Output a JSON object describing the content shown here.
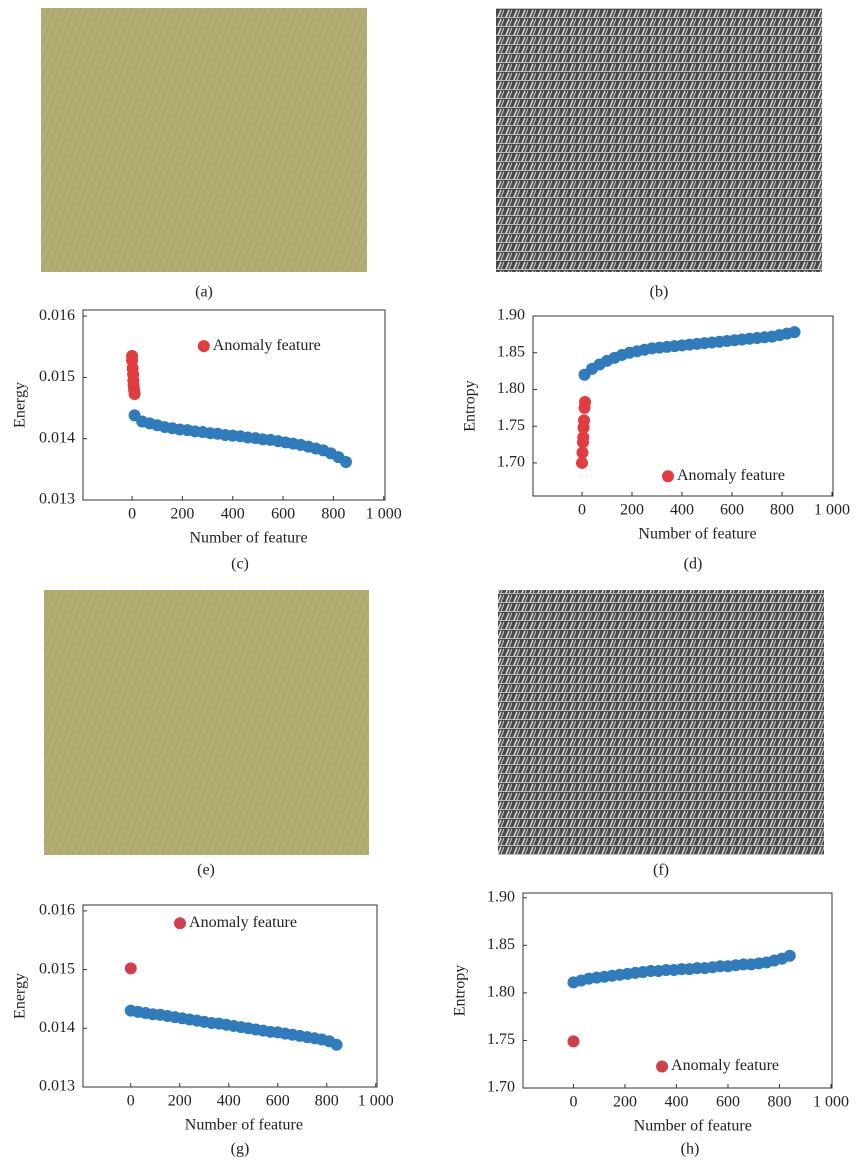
{
  "images": [
    {
      "caption": "(a)"
    },
    {
      "caption": "(b)"
    },
    {
      "caption": "(e)"
    },
    {
      "caption": "(f)"
    }
  ],
  "chart_data": [
    {
      "type": "scatter",
      "caption": "(c)",
      "xlabel": "Number of feature",
      "ylabel": "Energy",
      "xlim": [
        -195,
        1005
      ],
      "ylim": [
        0.013,
        0.0161
      ],
      "xticks": [
        0,
        200,
        400,
        600,
        800,
        {
          "value": 1000,
          "label": "1 000"
        }
      ],
      "yticks": [
        0.013,
        0.014,
        0.015,
        0.016
      ],
      "legend": "upper right",
      "series": [
        {
          "color": "#2f7bbb",
          "x": [
            10,
            40,
            70,
            100,
            130,
            160,
            190,
            220,
            250,
            280,
            310,
            340,
            370,
            400,
            430,
            460,
            490,
            520,
            550,
            580,
            610,
            640,
            670,
            700,
            730,
            760,
            790,
            820,
            850
          ],
          "values": [
            0.01438,
            0.01428,
            0.01425,
            0.01422,
            0.01419,
            0.01417,
            0.01415,
            0.01414,
            0.01412,
            0.01411,
            0.01409,
            0.01408,
            0.01406,
            0.01405,
            0.01404,
            0.01402,
            0.01401,
            0.01399,
            0.01398,
            0.01396,
            0.01394,
            0.01392,
            0.0139,
            0.01387,
            0.01384,
            0.01381,
            0.01376,
            0.0137,
            0.01362
          ]
        },
        {
          "name": "Anomaly feature",
          "color": "#e23b40",
          "x": [
            0,
            0,
            2,
            4,
            5,
            6,
            8,
            10
          ],
          "values": [
            0.01535,
            0.01528,
            0.01515,
            0.01505,
            0.01495,
            0.01487,
            0.0148,
            0.01473
          ]
        }
      ]
    },
    {
      "type": "scatter",
      "caption": "(d)",
      "xlabel": "Number of feature",
      "ylabel": "Entropy",
      "xlim": [
        -196,
        1004
      ],
      "ylim": [
        1.655,
        1.9
      ],
      "xticks": [
        0,
        200,
        400,
        600,
        800,
        {
          "value": 1000,
          "label": "1 000"
        }
      ],
      "yticks": [
        {
          "value": 1.7,
          "label": "1.70"
        },
        1.75,
        {
          "value": 1.8,
          "label": "1.80"
        },
        1.85,
        {
          "value": 1.9,
          "label": "1.90"
        }
      ],
      "legend": "lower right",
      "series": [
        {
          "color": "#2f7bbb",
          "x": [
            10,
            40,
            70,
            100,
            130,
            160,
            190,
            220,
            250,
            280,
            310,
            340,
            370,
            400,
            430,
            460,
            490,
            520,
            550,
            580,
            610,
            640,
            670,
            700,
            730,
            760,
            790,
            820,
            850
          ],
          "values": [
            1.82,
            1.828,
            1.834,
            1.839,
            1.843,
            1.847,
            1.85,
            1.852,
            1.854,
            1.856,
            1.857,
            1.858,
            1.859,
            1.86,
            1.861,
            1.862,
            1.863,
            1.864,
            1.865,
            1.866,
            1.867,
            1.868,
            1.869,
            1.87,
            1.871,
            1.872,
            1.874,
            1.876,
            1.878
          ]
        },
        {
          "name": "Anomaly feature",
          "color": "#e23b40",
          "x": [
            0,
            2,
            4,
            5,
            6,
            8,
            10,
            12
          ],
          "values": [
            1.7,
            1.714,
            1.728,
            1.735,
            1.748,
            1.758,
            1.775,
            1.783
          ]
        }
      ]
    },
    {
      "type": "scatter",
      "caption": "(g)",
      "xlabel": "Number of feature",
      "ylabel": "Energy",
      "xlim": [
        -195,
        1005
      ],
      "ylim": [
        0.013,
        0.0161
      ],
      "xticks": [
        0,
        200,
        400,
        600,
        800,
        {
          "value": 1000,
          "label": "1 000"
        }
      ],
      "yticks": [
        0.013,
        0.014,
        0.015,
        0.016
      ],
      "legend": "upper center",
      "series": [
        {
          "color": "#2f7bbb",
          "x": [
            0,
            30,
            60,
            90,
            120,
            150,
            180,
            210,
            240,
            270,
            300,
            330,
            360,
            390,
            420,
            450,
            480,
            510,
            540,
            570,
            600,
            630,
            660,
            690,
            720,
            750,
            780,
            810,
            840
          ],
          "values": [
            0.0143,
            0.01428,
            0.01426,
            0.01424,
            0.01423,
            0.01421,
            0.01419,
            0.01417,
            0.01415,
            0.01413,
            0.01411,
            0.01409,
            0.01408,
            0.01406,
            0.01404,
            0.01402,
            0.014,
            0.01398,
            0.01396,
            0.01394,
            0.01393,
            0.01391,
            0.01389,
            0.01387,
            0.01385,
            0.01383,
            0.01381,
            0.01378,
            0.01372
          ]
        },
        {
          "name": "Anomaly feature",
          "color": "#d1404a",
          "x": [
            0
          ],
          "values": [
            0.01502
          ]
        }
      ]
    },
    {
      "type": "scatter",
      "caption": "(h)",
      "xlabel": "Number of feature",
      "ylabel": "Entropy",
      "xlim": [
        -196,
        1004
      ],
      "ylim": [
        1.7,
        1.905
      ],
      "xticks": [
        0,
        200,
        400,
        600,
        800,
        {
          "value": 1000,
          "label": "1 000"
        }
      ],
      "yticks": [
        {
          "value": 1.7,
          "label": "1.70"
        },
        1.75,
        {
          "value": 1.8,
          "label": "1.80"
        },
        1.85,
        {
          "value": 1.9,
          "label": "1.90"
        }
      ],
      "legend": "lower right",
      "series": [
        {
          "color": "#2f7bbb",
          "x": [
            0,
            30,
            60,
            90,
            120,
            150,
            180,
            210,
            240,
            270,
            300,
            330,
            360,
            390,
            420,
            450,
            480,
            510,
            540,
            570,
            600,
            630,
            660,
            690,
            720,
            750,
            780,
            810,
            840
          ],
          "values": [
            1.811,
            1.813,
            1.815,
            1.816,
            1.817,
            1.818,
            1.819,
            1.82,
            1.821,
            1.822,
            1.823,
            1.823,
            1.824,
            1.824,
            1.825,
            1.825,
            1.826,
            1.826,
            1.827,
            1.828,
            1.828,
            1.829,
            1.83,
            1.83,
            1.831,
            1.832,
            1.834,
            1.836,
            1.839
          ]
        },
        {
          "name": "Anomaly feature",
          "color": "#d1404a",
          "x": [
            0
          ],
          "values": [
            1.749
          ]
        }
      ]
    }
  ]
}
